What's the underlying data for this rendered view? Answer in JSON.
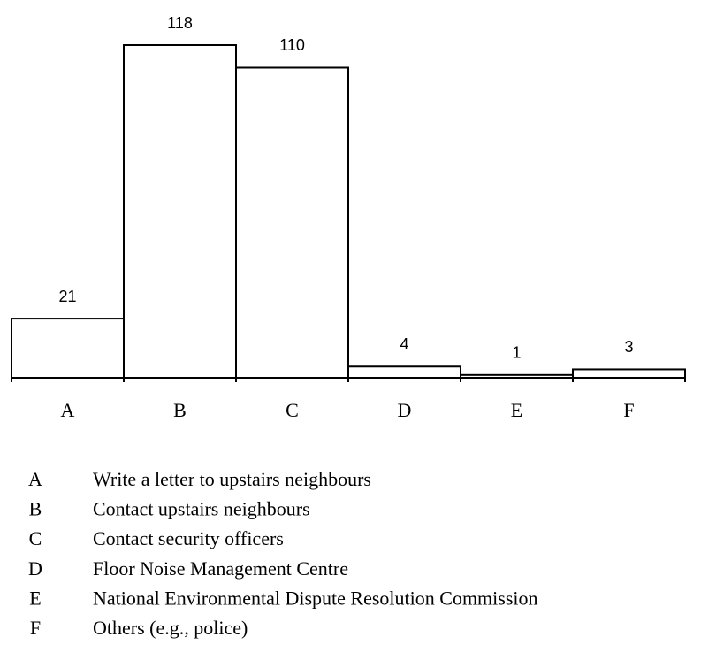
{
  "chart_data": {
    "type": "bar",
    "categories": [
      "A",
      "B",
      "C",
      "D",
      "E",
      "F"
    ],
    "values": [
      21,
      118,
      110,
      4,
      1,
      3
    ],
    "descriptions": [
      "Write a letter to upstairs neighbours",
      "Contact upstairs neighbours",
      "Contact security officers",
      "Floor Noise Management Centre",
      "National Environmental Dispute Resolution Commission",
      "Others (e.g., police)"
    ],
    "color": "#ffffff"
  }
}
